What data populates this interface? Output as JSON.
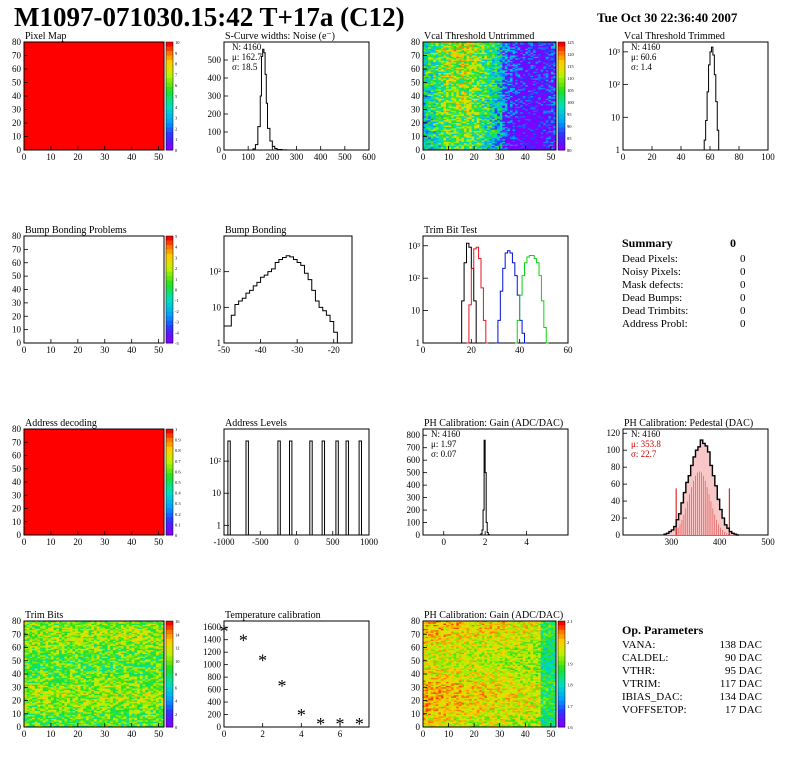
{
  "header": {
    "title": "M1097-071030.15:42 T+17a (C12)",
    "date": "Tue Oct 30 22:36:40 2007"
  },
  "summary": {
    "title": "Summary",
    "total": "0",
    "rows": [
      {
        "label": "Dead Pixels:",
        "value": "0"
      },
      {
        "label": "Noisy Pixels:",
        "value": "0"
      },
      {
        "label": "Mask defects:",
        "value": "0"
      },
      {
        "label": "Dead Bumps:",
        "value": "0"
      },
      {
        "label": "Dead Trimbits:",
        "value": "0"
      },
      {
        "label": "Address Probl:",
        "value": "0"
      }
    ]
  },
  "op_parameters": {
    "title": "Op. Parameters",
    "rows": [
      {
        "label": "VANA:",
        "value": "138 DAC"
      },
      {
        "label": "CALDEL:",
        "value": "90 DAC"
      },
      {
        "label": "VTHR:",
        "value": "95 DAC"
      },
      {
        "label": "VTRIM:",
        "value": "117 DAC"
      },
      {
        "label": "IBIAS_DAC:",
        "value": "134 DAC"
      },
      {
        "label": "VOFFSETOP:",
        "value": "17 DAC"
      }
    ]
  },
  "colors": {
    "background": "#ffffff",
    "map_red": "#ff0000",
    "trim_red": "#e8141e",
    "trim_blue": "#0010d8",
    "trim_green": "#10d010",
    "pedestal_red": "#d00000"
  },
  "chart_data": [
    {
      "id": "pixel-map",
      "type": "heatmap",
      "title": "Pixel Map",
      "xlim": [
        0,
        52
      ],
      "ylim": [
        0,
        80
      ],
      "xticks": [
        0,
        10,
        20,
        30,
        40,
        50
      ],
      "yticks": [
        0,
        10,
        20,
        30,
        40,
        50,
        60,
        70,
        80
      ],
      "fill": "uniform-max",
      "zlim": [
        0,
        10
      ],
      "zticks": [
        "10",
        "9",
        "8",
        "7",
        "6",
        "5",
        "4",
        "3",
        "2",
        "1",
        "0"
      ]
    },
    {
      "id": "noise",
      "type": "histogram",
      "title": "S-Curve widths: Noise (e⁻)",
      "xlim": [
        0,
        600
      ],
      "ylim": [
        0,
        600
      ],
      "xticks": [
        0,
        100,
        200,
        300,
        400,
        500,
        600
      ],
      "yticks": [
        0,
        100,
        200,
        300,
        400,
        500
      ],
      "stats": [
        "N: 4160",
        "μ: 162.7",
        "σ: 18.5"
      ],
      "x": [
        110,
        120,
        130,
        140,
        150,
        155,
        160,
        165,
        170,
        175,
        180,
        190,
        200,
        210,
        220,
        240,
        260
      ],
      "values": [
        0,
        6,
        30,
        130,
        300,
        520,
        560,
        540,
        420,
        260,
        120,
        50,
        20,
        8,
        3,
        1,
        0
      ]
    },
    {
      "id": "vcal-untrimmed",
      "type": "heatmap",
      "title": "Vcal Threshold Untrimmed",
      "xlim": [
        0,
        52
      ],
      "ylim": [
        0,
        80
      ],
      "xticks": [
        0,
        10,
        20,
        30,
        40,
        50
      ],
      "yticks": [
        0,
        10,
        20,
        30,
        40,
        50,
        60,
        70,
        80
      ],
      "fill": "noisy-green-blue",
      "zticks": [
        "125",
        "120",
        "115",
        "110",
        "105",
        "100",
        "95",
        "90",
        "85",
        "80"
      ]
    },
    {
      "id": "vcal-trimmed",
      "type": "histogram",
      "title": "Vcal Threshold Trimmed",
      "log_y": true,
      "xlim": [
        0,
        100
      ],
      "ylim": [
        1,
        2000
      ],
      "xticks": [
        0,
        20,
        40,
        60,
        80,
        100
      ],
      "yticks": [
        "1",
        "10",
        "10²",
        "10³"
      ],
      "stats": [
        "N: 4160",
        "μ: 60.6",
        "σ: 1.4"
      ],
      "x": [
        56,
        57,
        58,
        59,
        60,
        61,
        62,
        63,
        64,
        65,
        66
      ],
      "values": [
        2,
        8,
        60,
        400,
        1000,
        1400,
        800,
        200,
        30,
        4,
        1
      ]
    },
    {
      "id": "bump-problems",
      "type": "heatmap",
      "title": "Bump Bonding Problems",
      "xlim": [
        0,
        52
      ],
      "ylim": [
        0,
        80
      ],
      "xticks": [
        0,
        10,
        20,
        30,
        40,
        50
      ],
      "yticks": [
        0,
        10,
        20,
        30,
        40,
        50,
        60,
        70,
        80
      ],
      "fill": "empty",
      "zticks": [
        "5",
        "4",
        "3",
        "2",
        "1",
        "0",
        "-1",
        "-2",
        "-3",
        "-4",
        "-5"
      ]
    },
    {
      "id": "bump-bonding",
      "type": "histogram",
      "title": "Bump Bonding",
      "log_y": true,
      "xlim": [
        -50,
        -15
      ],
      "ylim": [
        1,
        1000
      ],
      "xticks": [
        -50,
        -40,
        -30,
        -20
      ],
      "yticks": [
        "1",
        "10",
        "10²"
      ],
      "x": [
        -50,
        -48,
        -47,
        -46,
        -45,
        -44,
        -43,
        -42,
        -41,
        -40,
        -39,
        -38,
        -37,
        -36,
        -35,
        -34,
        -33,
        -32,
        -31,
        -30,
        -29,
        -28,
        -27,
        -26,
        -25,
        -24,
        -23,
        -22,
        -21,
        -20,
        -19
      ],
      "values": [
        3,
        6,
        12,
        15,
        18,
        25,
        30,
        40,
        50,
        70,
        80,
        100,
        120,
        180,
        220,
        250,
        280,
        260,
        220,
        180,
        150,
        90,
        60,
        30,
        15,
        10,
        8,
        6,
        4,
        2,
        1
      ]
    },
    {
      "id": "trim-bit-test",
      "type": "histogram",
      "title": "Trim Bit Test",
      "log_y": true,
      "xlim": [
        0,
        60
      ],
      "ylim": [
        1,
        2000
      ],
      "xticks": [
        0,
        20,
        40,
        60
      ],
      "yticks": [
        "1",
        "10",
        "10²",
        "10³"
      ],
      "series": [
        {
          "color": "#000000",
          "x": [
            15,
            16,
            17,
            18,
            19,
            20,
            21,
            22
          ],
          "values": [
            1,
            20,
            300,
            1200,
            900,
            200,
            20,
            1
          ]
        },
        {
          "color": "#e8141e",
          "x": [
            18,
            19,
            20,
            21,
            22,
            23,
            24,
            25,
            26
          ],
          "values": [
            1,
            15,
            200,
            800,
            900,
            400,
            50,
            5,
            1
          ]
        },
        {
          "color": "#0010d8",
          "x": [
            30,
            31,
            32,
            33,
            34,
            35,
            36,
            37,
            38,
            39,
            40,
            41,
            42
          ],
          "values": [
            1,
            5,
            40,
            200,
            600,
            700,
            600,
            300,
            120,
            30,
            5,
            2,
            1
          ]
        },
        {
          "color": "#10d010",
          "x": [
            38,
            39,
            40,
            41,
            42,
            43,
            44,
            45,
            46,
            47,
            48,
            49,
            50,
            51
          ],
          "values": [
            1,
            5,
            30,
            120,
            300,
            450,
            500,
            500,
            400,
            300,
            120,
            20,
            3,
            1
          ]
        }
      ]
    },
    {
      "id": "address-decoding",
      "type": "heatmap",
      "title": "Address decoding",
      "xlim": [
        0,
        52
      ],
      "ylim": [
        0,
        80
      ],
      "xticks": [
        0,
        10,
        20,
        30,
        40,
        50
      ],
      "yticks": [
        0,
        10,
        20,
        30,
        40,
        50,
        60,
        70,
        80
      ],
      "fill": "uniform-max",
      "zticks": [
        "1",
        "0.9",
        "0.8",
        "0.7",
        "0.6",
        "0.5",
        "0.4",
        "0.3",
        "0.2",
        "0.1",
        "0"
      ]
    },
    {
      "id": "address-levels",
      "type": "histogram",
      "title": "Address Levels",
      "log_y": true,
      "xlim": [
        -1000,
        1000
      ],
      "ylim": [
        0.5,
        1000
      ],
      "xticks": [
        -1000,
        -500,
        0,
        500,
        1000
      ],
      "yticks": [
        "1",
        "10",
        "10²"
      ],
      "peaks": [
        -930,
        -680,
        -240,
        -80,
        200,
        370,
        560,
        700,
        880
      ]
    },
    {
      "id": "ph-gain",
      "type": "histogram",
      "title": "PH Calibration: Gain (ADC/DAC)",
      "xlim": [
        -1,
        6
      ],
      "ylim": [
        0,
        850
      ],
      "xticks": [
        0,
        2,
        4
      ],
      "yticks": [
        0,
        100,
        200,
        300,
        400,
        500,
        600,
        700,
        800
      ],
      "stats": [
        "N: 4160",
        "μ: 1.97",
        "σ: 0.07"
      ],
      "x": [
        1.75,
        1.8,
        1.85,
        1.9,
        1.95,
        2.0,
        2.05,
        2.1,
        2.15,
        2.2
      ],
      "values": [
        2,
        10,
        40,
        200,
        760,
        500,
        100,
        20,
        4,
        0
      ]
    },
    {
      "id": "ph-pedestal",
      "type": "histogram",
      "title": "PH Calibration: Pedestal (DAC)",
      "xlim": [
        200,
        500
      ],
      "ylim": [
        0,
        125
      ],
      "xticks": [
        300,
        400,
        500
      ],
      "yticks": [
        0,
        20,
        40,
        60,
        80,
        100,
        120
      ],
      "stats": [
        "N: 4160",
        "μ: 353.8",
        "σ: 22.7"
      ],
      "fit_range": [
        310,
        420
      ],
      "x": [
        285,
        290,
        295,
        300,
        305,
        310,
        315,
        320,
        325,
        330,
        335,
        340,
        345,
        350,
        355,
        360,
        365,
        370,
        375,
        380,
        385,
        390,
        395,
        400,
        405,
        410,
        415,
        420,
        425,
        430,
        435
      ],
      "values": [
        1,
        2,
        4,
        6,
        10,
        18,
        25,
        38,
        50,
        62,
        70,
        82,
        92,
        100,
        104,
        112,
        108,
        105,
        98,
        82,
        70,
        58,
        42,
        30,
        20,
        12,
        8,
        4,
        2,
        1,
        0
      ]
    },
    {
      "id": "trim-bits",
      "type": "heatmap",
      "title": "Trim Bits",
      "xlim": [
        0,
        52
      ],
      "ylim": [
        0,
        80
      ],
      "xticks": [
        0,
        10,
        20,
        30,
        40,
        50
      ],
      "yticks": [
        0,
        10,
        20,
        30,
        40,
        50,
        60,
        70,
        80
      ],
      "fill": "noisy-yellow-green",
      "zticks": [
        "16",
        "14",
        "12",
        "10",
        "8",
        "6",
        "4",
        "2",
        "0"
      ]
    },
    {
      "id": "temperature",
      "type": "scatter",
      "title": "Temperature calibration",
      "xlim": [
        0,
        7.5
      ],
      "ylim": [
        0,
        1700
      ],
      "xticks": [
        0,
        2,
        4,
        6
      ],
      "yticks": [
        0,
        200,
        400,
        600,
        800,
        1000,
        1200,
        1400,
        1600
      ],
      "x": [
        0,
        1,
        2,
        3,
        4,
        5,
        6,
        7
      ],
      "values": [
        1530,
        1390,
        1070,
        660,
        190,
        45,
        45,
        45
      ]
    },
    {
      "id": "ph-gain-map",
      "type": "heatmap",
      "title": "PH Calibration: Gain (ADC/DAC)",
      "xlim": [
        0,
        52
      ],
      "ylim": [
        0,
        80
      ],
      "xticks": [
        0,
        10,
        20,
        30,
        40,
        50
      ],
      "yticks": [
        0,
        10,
        20,
        30,
        40,
        50,
        60,
        70,
        80
      ],
      "fill": "noisy-orange-yellow",
      "zticks": [
        "2.1",
        "2",
        "1.9",
        "1.8",
        "1.7",
        "1.6"
      ]
    }
  ]
}
